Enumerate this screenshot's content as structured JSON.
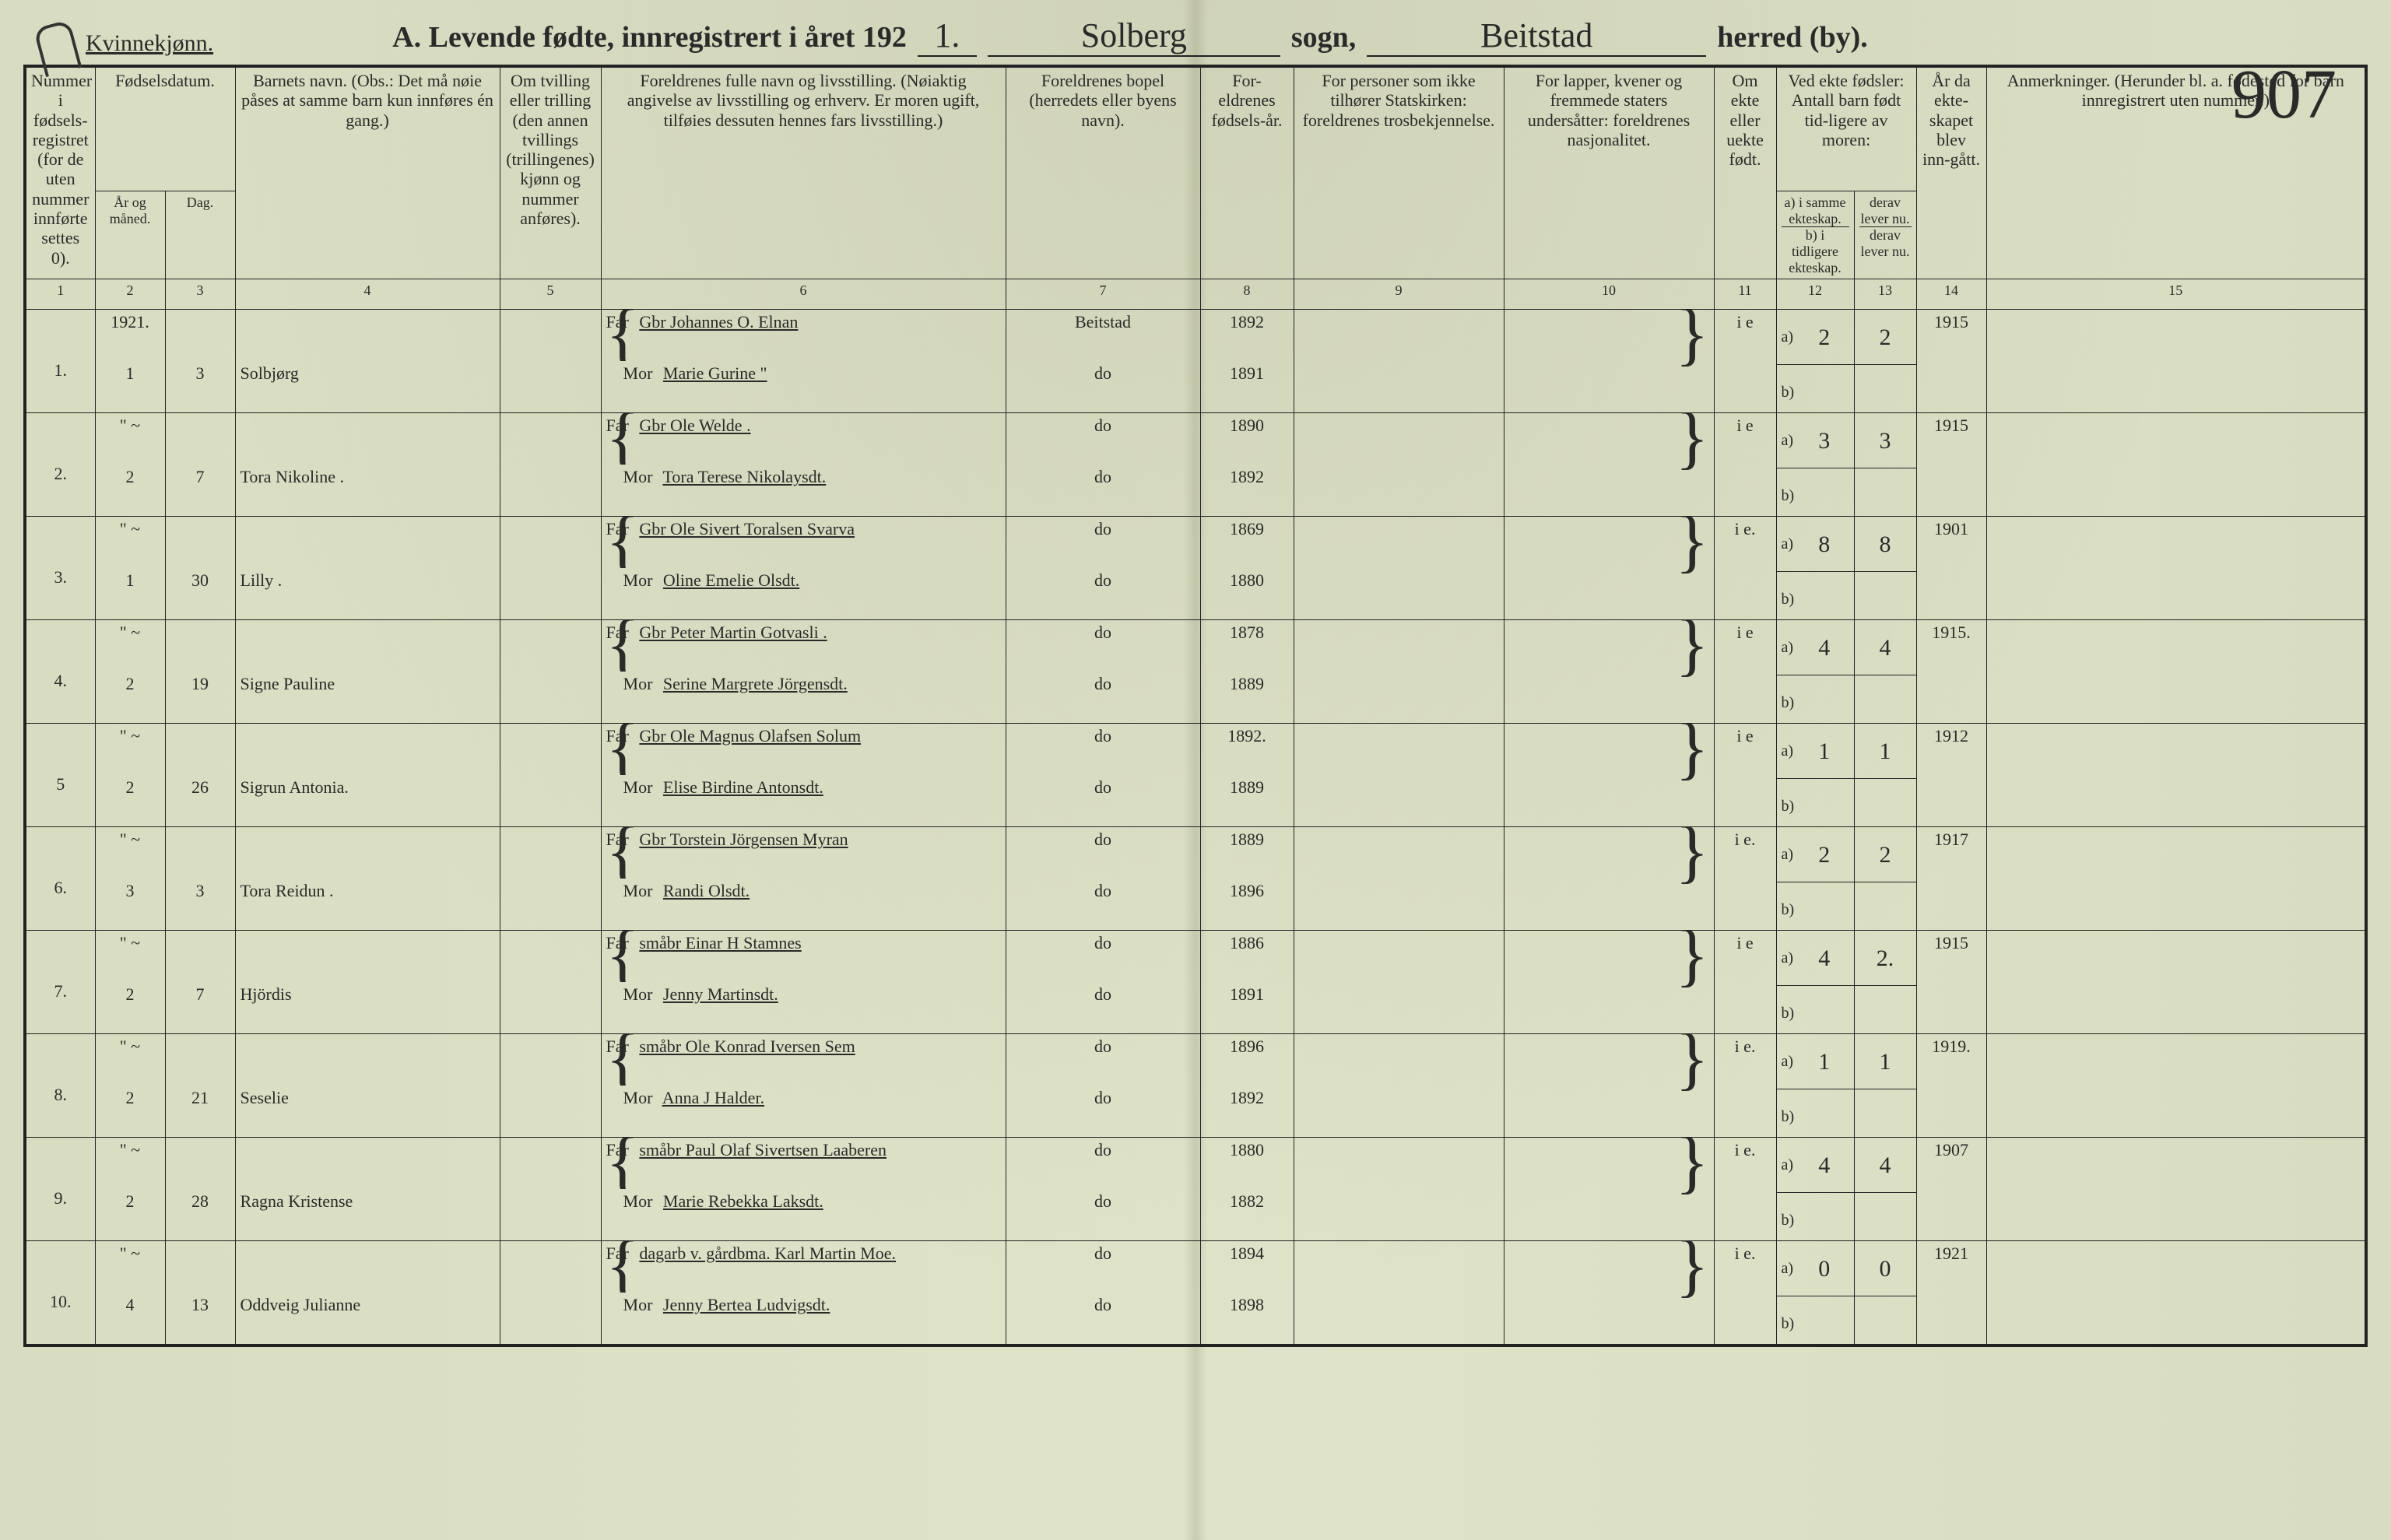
{
  "header": {
    "gender": "Kvinnekjønn.",
    "title_prefix": "A.  Levende fødte, innregistrert i året 192",
    "year_suffix": "1.",
    "sogn_label": "sogn,",
    "sogn_value": "Solberg",
    "herred_label": "herred (by).",
    "herred_value": "Beitstad",
    "page_no": "907"
  },
  "columns": {
    "c1": "Nummer i fødsels-registret (for de uten nummer innførte settes 0).",
    "c_fd": "Fødselsdatum.",
    "c2": "År og måned.",
    "c3": "Dag.",
    "c4": "Barnets navn.\n(Obs.: Det må nøie påses at samme barn kun innføres én gang.)",
    "c5": "Om tvilling eller trilling (den annen tvillings (trillingenes) kjønn og nummer anføres).",
    "c6": "Foreldrenes fulle navn og livsstilling.\n(Nøiaktig angivelse av livsstilling og erhverv.\nEr moren ugift, tilføies dessuten hennes fars livsstilling.)",
    "c7": "Foreldrenes bopel (herredets eller byens navn).",
    "c8": "For-eldrenes fødsels-år.",
    "c9": "For personer som ikke tilhører Statskirken: foreldrenes trosbekjennelse.",
    "c10": "For lapper, kvener og fremmede staters undersåtter: foreldrenes nasjonalitet.",
    "c11": "Om ekte eller uekte født.",
    "c12_top": "Ved ekte fødsler:\nAntall barn født tid-ligere av moren:",
    "c12a": "a) i samme ekteskap.",
    "c12b": "derav lever nu.",
    "c12b2": "b) i tidligere ekteskap.",
    "c12b2d": "derav lever nu.",
    "c13": "År da ekte-skapet blev inn-gått.",
    "c15": "Anmerkninger.\n(Herunder bl. a. fødested for barn innregistrert uten nummer.)",
    "nums": [
      "1",
      "2",
      "3",
      "4",
      "5",
      "6",
      "7",
      "8",
      "9",
      "10",
      "11",
      "12",
      "13",
      "14",
      "15"
    ],
    "far": "Far",
    "mor": "Mor"
  },
  "rows": [
    {
      "no": "1.",
      "ym_top": "1921.",
      "ym": "1",
      "day": "3",
      "child": "Solbjørg",
      "far": "Gbr Johannes O. Elnan",
      "mor": "Marie Gurine   \"",
      "bopel_f": "Beitstad",
      "bopel_m": "do",
      "yf": "1892",
      "ym2": "1891",
      "ekte": "i e",
      "a": "2",
      "d": "2",
      "yr": "1915"
    },
    {
      "no": "2.",
      "ym_top": "\" ~",
      "ym": "2",
      "day": "7",
      "child": "Tora Nikoline .",
      "far": "Gbr Ole Welde .",
      "mor": "Tora Terese Nikolaysdt.",
      "bopel_f": "do",
      "bopel_m": "do",
      "yf": "1890",
      "ym2": "1892",
      "ekte": "i e",
      "a": "3",
      "d": "3",
      "yr": "1915"
    },
    {
      "no": "3.",
      "ym_top": "\" ~",
      "ym": "1",
      "day": "30",
      "child": "Lilly .",
      "far": "Gbr Ole Sivert Toralsen Svarva",
      "mor": "Oline Emelie Olsdt.",
      "bopel_f": "do",
      "bopel_m": "do",
      "yf": "1869",
      "ym2": "1880",
      "ekte": "i e.",
      "a": "8",
      "d": "8",
      "yr": "1901"
    },
    {
      "no": "4.",
      "ym_top": "\" ~",
      "ym": "2",
      "day": "19",
      "child": "Signe Pauline",
      "far": "Gbr Peter Martin Gotvasli .",
      "mor": "Serine Margrete Jörgensdt.",
      "bopel_f": "do",
      "bopel_m": "do",
      "yf": "1878",
      "ym2": "1889",
      "ekte": "i e",
      "a": "4",
      "d": "4",
      "yr": "1915."
    },
    {
      "no": "5",
      "ym_top": "\" ~",
      "ym": "2",
      "day": "26",
      "child": "Sigrun Antonia.",
      "far": "Gbr Ole Magnus Olafsen Solum",
      "mor": "Elise Birdine Antonsdt.",
      "bopel_f": "do",
      "bopel_m": "do",
      "yf": "1892.",
      "ym2": "1889",
      "ekte": "i e",
      "a": "1",
      "d": "1",
      "yr": "1912"
    },
    {
      "no": "6.",
      "ym_top": "\" ~",
      "ym": "3",
      "day": "3",
      "child": "Tora Reidun .",
      "far": "Gbr Torstein Jörgensen Myran",
      "mor": "Randi Olsdt.",
      "bopel_f": "do",
      "bopel_m": "do",
      "yf": "1889",
      "ym2": "1896",
      "ekte": "i e.",
      "a": "2",
      "d": "2",
      "yr": "1917"
    },
    {
      "no": "7.",
      "ym_top": "\" ~",
      "ym": "2",
      "day": "7",
      "child": "Hjördis",
      "far": "småbr Einar H Stamnes",
      "mor": "Jenny Martinsdt.",
      "bopel_f": "do",
      "bopel_m": "do",
      "yf": "1886",
      "ym2": "1891",
      "ekte": "i e",
      "a": "4",
      "d": "2.",
      "yr": "1915"
    },
    {
      "no": "8.",
      "ym_top": "\" ~",
      "ym": "2",
      "day": "21",
      "child": "Seselie",
      "far": "småbr Ole Konrad Iversen Sem",
      "mor": "Anna J Halder.",
      "bopel_f": "do",
      "bopel_m": "do",
      "yf": "1896",
      "ym2": "1892",
      "ekte": "i e.",
      "a": "1",
      "d": "1",
      "yr": "1919."
    },
    {
      "no": "9.",
      "ym_top": "\" ~",
      "ym": "2",
      "day": "28",
      "child": "Ragna Kristense",
      "far": "småbr Paul Olaf Sivertsen Laaberen",
      "mor": "Marie Rebekka Laksdt.",
      "bopel_f": "do",
      "bopel_m": "do",
      "yf": "1880",
      "ym2": "1882",
      "ekte": "i e.",
      "a": "4",
      "d": "4",
      "yr": "1907"
    },
    {
      "no": "10.",
      "ym_top": "\" ~",
      "ym": "4",
      "day": "13",
      "child": "Oddveig Julianne",
      "far": "dagarb v. gårdbma.  Karl Martin Moe.",
      "mor": "Jenny Bertea Ludvigsdt.",
      "bopel_f": "do",
      "bopel_m": "do",
      "yf": "1894",
      "ym2": "1898",
      "ekte": "i e.",
      "a": "0",
      "d": "0",
      "yr": "1921"
    }
  ]
}
